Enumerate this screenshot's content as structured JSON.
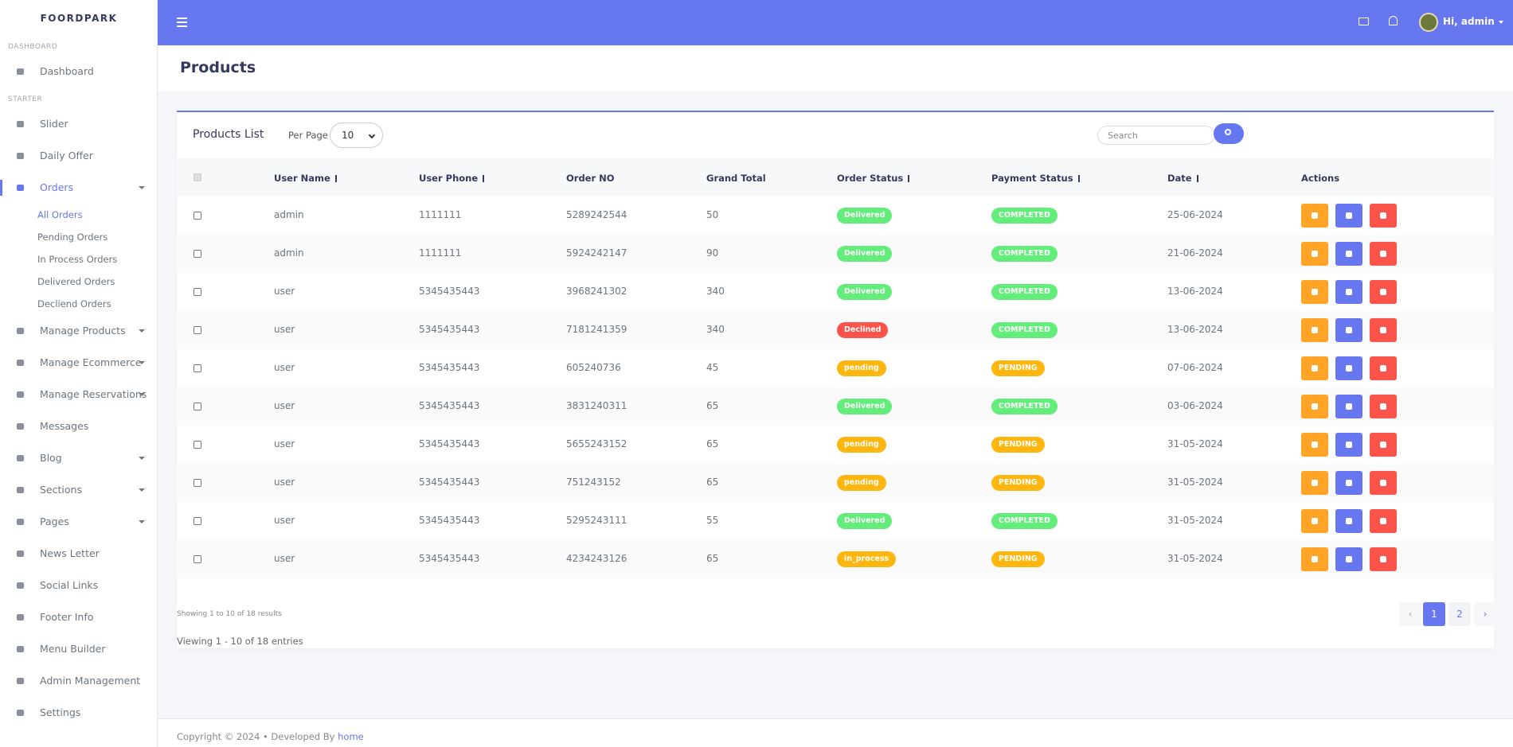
{
  "sidebar": {
    "brand": "FOORDPARK",
    "sections": [
      {
        "heading": "DASHBOARD",
        "items": [
          {
            "label": "Dashboard"
          }
        ]
      },
      {
        "heading": "STARTER",
        "items": [
          {
            "label": "Slider"
          },
          {
            "label": "Daily Offer"
          },
          {
            "label": "Orders",
            "dropdown": true,
            "active": true,
            "children": [
              {
                "label": "All Orders",
                "active": true
              },
              {
                "label": "Pending Orders"
              },
              {
                "label": "In Process Orders"
              },
              {
                "label": "Delivered Orders"
              },
              {
                "label": "Decliend Orders"
              }
            ]
          },
          {
            "label": "Manage Products",
            "dropdown": true
          },
          {
            "label": "Manage Ecommerce",
            "dropdown": true
          },
          {
            "label": "Manage Reservations",
            "dropdown": true
          },
          {
            "label": "Messages"
          },
          {
            "label": "Blog",
            "dropdown": true
          },
          {
            "label": "Sections",
            "dropdown": true
          },
          {
            "label": "Pages",
            "dropdown": true
          },
          {
            "label": "News Letter"
          },
          {
            "label": "Social Links"
          },
          {
            "label": "Footer Info"
          },
          {
            "label": "Menu Builder"
          },
          {
            "label": "Admin Management"
          },
          {
            "label": "Settings"
          }
        ]
      }
    ]
  },
  "topbar": {
    "user": "Hi, admin"
  },
  "page": {
    "title": "Products"
  },
  "card": {
    "title": "Products List",
    "per_page_label": "Per Page",
    "per_page": 10,
    "search_placeholder": "Search"
  },
  "table": {
    "columns": [
      {
        "label": "User Name",
        "sortable": true
      },
      {
        "label": "User Phone",
        "sortable": true
      },
      {
        "label": "Order NO",
        "sortable": false
      },
      {
        "label": "Grand Total",
        "sortable": false
      },
      {
        "label": "Order Status",
        "sortable": true
      },
      {
        "label": "Payment Status",
        "sortable": true
      },
      {
        "label": "Date",
        "sortable": true
      },
      {
        "label": "Actions",
        "sortable": false
      }
    ],
    "rows": [
      {
        "user": "admin",
        "phone": "1111111",
        "order_no": "5289242544",
        "total": 50,
        "order_status": {
          "label": "Delivered",
          "color": "#63ed7a"
        },
        "payment_status": {
          "label": "COMPLETED",
          "color": "#63ed7a"
        },
        "date": "25-06-2024"
      },
      {
        "user": "admin",
        "phone": "1111111",
        "order_no": "5924242147",
        "total": 90,
        "order_status": {
          "label": "Delivered",
          "color": "#63ed7a"
        },
        "payment_status": {
          "label": "COMPLETED",
          "color": "#63ed7a"
        },
        "date": "21-06-2024"
      },
      {
        "user": "user",
        "phone": "5345435443",
        "order_no": "3968241302",
        "total": 340,
        "order_status": {
          "label": "Delivered",
          "color": "#63ed7a"
        },
        "payment_status": {
          "label": "COMPLETED",
          "color": "#63ed7a"
        },
        "date": "13-06-2024"
      },
      {
        "user": "user",
        "phone": "5345435443",
        "order_no": "7181241359",
        "total": 340,
        "order_status": {
          "label": "Declined",
          "color": "#fc544b"
        },
        "payment_status": {
          "label": "COMPLETED",
          "color": "#63ed7a"
        },
        "date": "13-06-2024"
      },
      {
        "user": "user",
        "phone": "5345435443",
        "order_no": "605240736",
        "total": 45,
        "order_status": {
          "label": "pending",
          "color": "#ffb70f"
        },
        "payment_status": {
          "label": "PENDING",
          "color": "#ffb70f"
        },
        "date": "07-06-2024"
      },
      {
        "user": "user",
        "phone": "5345435443",
        "order_no": "3831240311",
        "total": 65,
        "order_status": {
          "label": "Delivered",
          "color": "#63ed7a"
        },
        "payment_status": {
          "label": "COMPLETED",
          "color": "#63ed7a"
        },
        "date": "03-06-2024"
      },
      {
        "user": "user",
        "phone": "5345435443",
        "order_no": "5655243152",
        "total": 65,
        "order_status": {
          "label": "pending",
          "color": "#ffb70f"
        },
        "payment_status": {
          "label": "PENDING",
          "color": "#ffb70f"
        },
        "date": "31-05-2024"
      },
      {
        "user": "user",
        "phone": "5345435443",
        "order_no": "751243152",
        "total": 65,
        "order_status": {
          "label": "pending",
          "color": "#ffb70f"
        },
        "payment_status": {
          "label": "PENDING",
          "color": "#ffb70f"
        },
        "date": "31-05-2024"
      },
      {
        "user": "user",
        "phone": "5345435443",
        "order_no": "5295243111",
        "total": 55,
        "order_status": {
          "label": "Delivered",
          "color": "#63ed7a"
        },
        "payment_status": {
          "label": "COMPLETED",
          "color": "#63ed7a"
        },
        "date": "31-05-2024"
      },
      {
        "user": "user",
        "phone": "5345435443",
        "order_no": "4234243126",
        "total": 65,
        "order_status": {
          "label": "in_process",
          "color": "#ffb70f"
        },
        "payment_status": {
          "label": "PENDING",
          "color": "#ffb70f"
        },
        "date": "31-05-2024"
      }
    ]
  },
  "pagination": {
    "summary": "Showing 1 to 10 of 18 results",
    "prev": "‹",
    "pages": [
      1,
      2
    ],
    "current": 1,
    "next": "›",
    "viewing": "Viewing 1 - 10 of 18 entries"
  },
  "footer": {
    "copyright": "Copyright © 2024",
    "separator": "•",
    "developed_by": "Developed By",
    "link": "home"
  }
}
